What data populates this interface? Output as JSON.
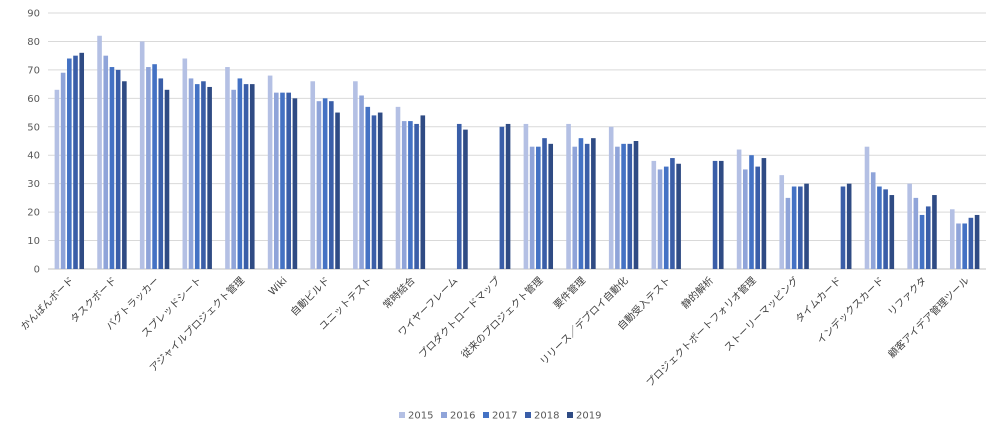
{
  "chart_data": {
    "type": "bar",
    "title": "",
    "xlabel": "",
    "ylabel": "",
    "ylim": [
      0,
      90
    ],
    "yticks": [
      0,
      10,
      20,
      30,
      40,
      50,
      60,
      70,
      80,
      90
    ],
    "grid": true,
    "legend_position": "bottom",
    "categories": [
      "かんばんボード",
      "タスクボード",
      "バグトラッカー",
      "スプレッドシート",
      "アジャイルプロジェクト管理",
      "Wiki",
      "自動ビルド",
      "ユニットテスト",
      "常時結合",
      "ワイヤーフレーム",
      "プロダクトロードマップ",
      "従来のプロジェクト管理",
      "要件管理",
      "リリース／デプロイ自動化",
      "自動受入テスト",
      "静的解析",
      "プロジェクトポートフォリオ管理",
      "ストーリーマッピング",
      "タイムカード",
      "インデックスカード",
      "リファクタ",
      "顧客アイデア管理ツール"
    ],
    "series": [
      {
        "name": "2015",
        "color": "#b4c0e4",
        "values": [
          63,
          82,
          80,
          74,
          71,
          68,
          66,
          66,
          57,
          null,
          null,
          51,
          51,
          50,
          38,
          null,
          42,
          33,
          null,
          43,
          30,
          21
        ]
      },
      {
        "name": "2016",
        "color": "#8fa4d9",
        "values": [
          69,
          75,
          71,
          67,
          63,
          62,
          59,
          61,
          52,
          null,
          null,
          43,
          43,
          43,
          35,
          null,
          35,
          25,
          null,
          34,
          25,
          16
        ]
      },
      {
        "name": "2017",
        "color": "#4472c4",
        "values": [
          74,
          71,
          72,
          65,
          67,
          62,
          60,
          57,
          52,
          null,
          null,
          43,
          46,
          44,
          36,
          null,
          40,
          29,
          null,
          29,
          19,
          16
        ]
      },
      {
        "name": "2018",
        "color": "#3a5ea8",
        "values": [
          75,
          70,
          67,
          66,
          65,
          62,
          59,
          54,
          51,
          51,
          50,
          46,
          44,
          44,
          39,
          38,
          36,
          29,
          29,
          28,
          22,
          18
        ]
      },
      {
        "name": "2019",
        "color": "#2f4b84",
        "values": [
          76,
          66,
          63,
          64,
          65,
          60,
          55,
          55,
          54,
          49,
          51,
          44,
          46,
          45,
          37,
          38,
          39,
          30,
          30,
          26,
          26,
          19
        ]
      }
    ]
  }
}
